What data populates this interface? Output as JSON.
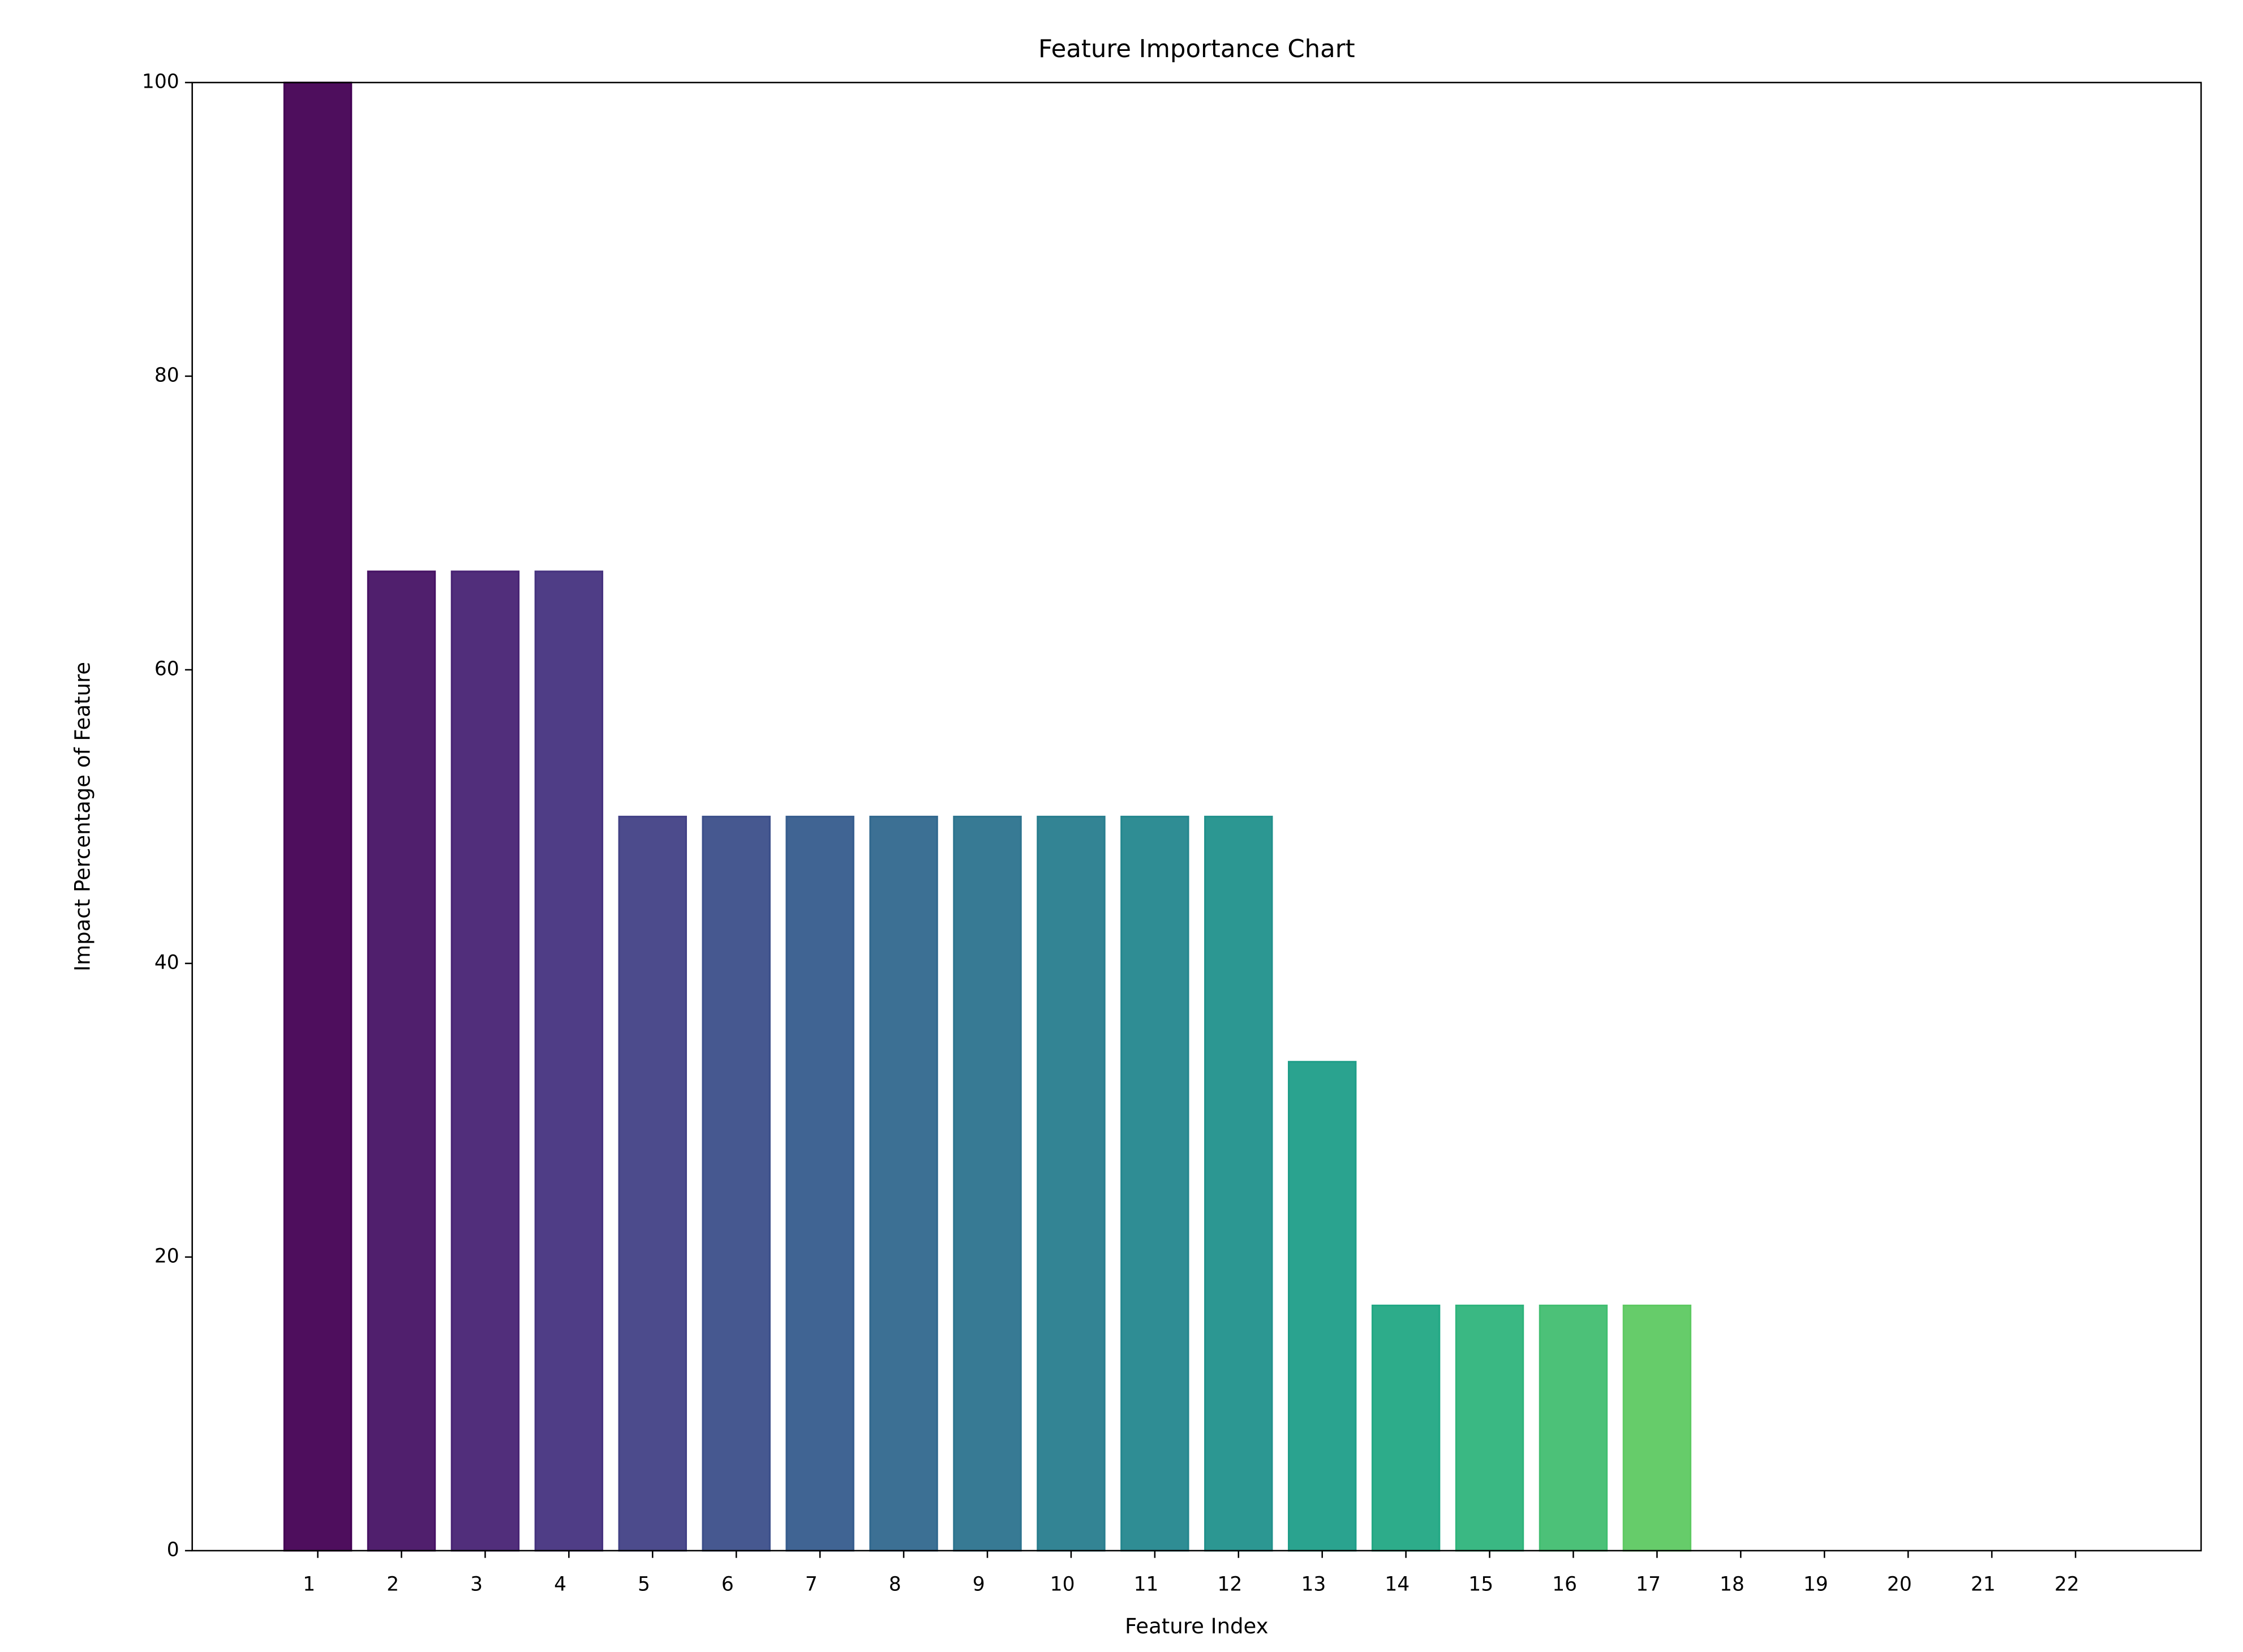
{
  "chart_data": {
    "type": "bar",
    "title": "Feature Importance Chart",
    "x_label": "Feature Index",
    "y_label": "Impact Percentage of Feature",
    "x": [
      1,
      2,
      3,
      4,
      5,
      6,
      7,
      8,
      9,
      10,
      11,
      12,
      13,
      14,
      15,
      16,
      17,
      18,
      19,
      20,
      21,
      22
    ],
    "values": [
      100,
      66.7,
      66.7,
      66.7,
      50,
      50,
      50,
      50,
      50,
      50,
      50,
      50,
      33.3,
      16.7,
      16.7,
      16.7,
      16.7,
      0,
      0,
      0,
      0,
      0
    ],
    "colors": [
      "#440154",
      "#471365",
      "#482374",
      "#46337f",
      "#424186",
      "#3c4f8a",
      "#365c8d",
      "#31688e",
      "#2c738e",
      "#287d8e",
      "#24878e",
      "#21918c",
      "#1f9e89",
      "#22a884",
      "#2fb47c",
      "#42be71",
      "#5ec962",
      "#7ad151",
      "#9bd93c",
      "#bddf26",
      "#dde318",
      "#fde725"
    ],
    "alpha": 0.95,
    "xlim": [
      -0.5,
      23.5
    ],
    "xticks": [
      1,
      2,
      3,
      4,
      5,
      6,
      7,
      8,
      9,
      10,
      11,
      12,
      13,
      14,
      15,
      16,
      17,
      18,
      19,
      20,
      21,
      22
    ],
    "ylim": [
      0,
      100
    ],
    "yticks": [
      0,
      20,
      40,
      60,
      80,
      100
    ]
  }
}
